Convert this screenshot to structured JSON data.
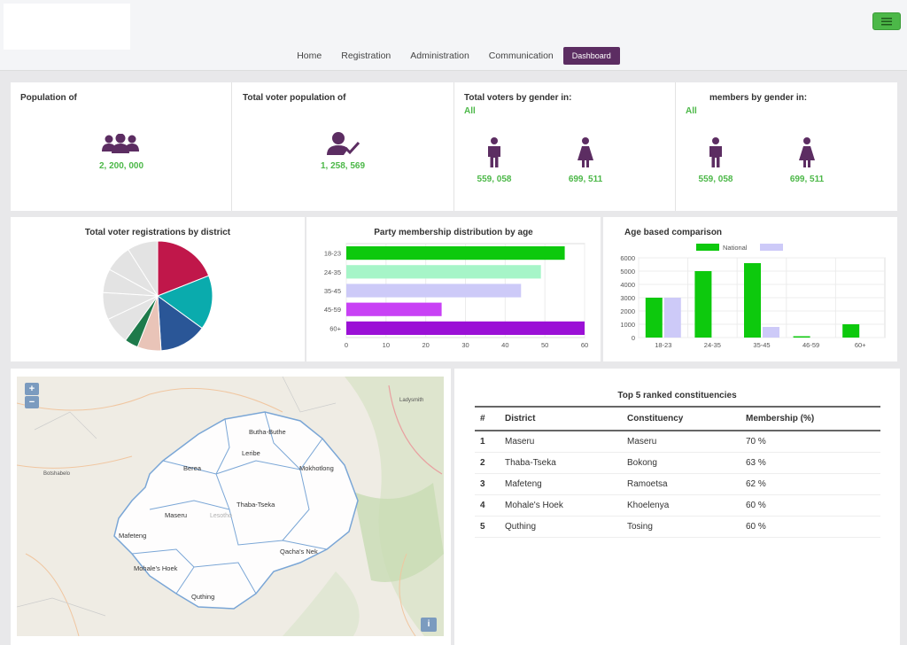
{
  "nav": {
    "items": [
      {
        "label": "Home"
      },
      {
        "label": "Registration"
      },
      {
        "label": "Administration"
      },
      {
        "label": "Communication"
      },
      {
        "label": "Dashboard",
        "active": true
      }
    ]
  },
  "stats": {
    "population": {
      "title": "Population of",
      "value": "2, 200, 000"
    },
    "voter_population": {
      "title": "Total voter population of",
      "value": "1, 258, 569"
    },
    "voters_gender": {
      "title": "Total voters by gender in:",
      "filter": "All",
      "male": "559, 058",
      "female": "699, 511"
    },
    "members_gender": {
      "title": "members by gender in:",
      "filter": "All",
      "male": "559, 058",
      "female": "699, 511"
    }
  },
  "charts": {
    "pie_title": "Total voter registrations by district",
    "bar_title": "Party membership distribution by age",
    "age_title": "Age based comparison"
  },
  "chart_data": [
    {
      "type": "pie",
      "title": "Total voter registrations by district",
      "values": [
        19,
        16,
        14,
        7,
        4,
        8,
        8,
        7,
        8,
        9
      ],
      "colors": [
        "#c0174a",
        "#0aabad",
        "#2a5697",
        "#e9c4b8",
        "#1e7a4b",
        "#e3e3e3",
        "#e3e3e3",
        "#e3e3e3",
        "#e3e3e3",
        "#e3e3e3"
      ]
    },
    {
      "type": "bar",
      "orientation": "horizontal",
      "title": "Party membership distribution by age",
      "categories": [
        "18-23",
        "24-35",
        "35-45",
        "45-59",
        "60+"
      ],
      "values": [
        55,
        49,
        44,
        24,
        60
      ],
      "colors": [
        "#0dc90d",
        "#a6f5c8",
        "#cdcaf8",
        "#c841f5",
        "#9b10d6"
      ],
      "xlim": [
        0,
        60
      ],
      "xticks": [
        0,
        10,
        20,
        30,
        40,
        50,
        60
      ]
    },
    {
      "type": "bar",
      "title": "Age based comparison",
      "categories": [
        "18-23",
        "24-35",
        "35-45",
        "46-59",
        "60+"
      ],
      "series": [
        {
          "name": "National",
          "values": [
            3000,
            5000,
            5600,
            100,
            1000
          ],
          "color": "#0dc90d"
        },
        {
          "name": "",
          "values": [
            3000,
            0,
            800,
            0,
            0
          ],
          "color": "#cdcaf8"
        }
      ],
      "ylim": [
        0,
        6000
      ],
      "yticks": [
        0,
        1000,
        2000,
        3000,
        4000,
        5000,
        6000
      ],
      "legend": "top"
    }
  ],
  "table": {
    "title": "Top 5 ranked constituencies",
    "headers": [
      "#",
      "District",
      "Constituency",
      "Membership (%)"
    ],
    "rows": [
      [
        "1",
        "Maseru",
        "Maseru",
        "70 %"
      ],
      [
        "2",
        "Thaba-Tseka",
        "Bokong",
        "63 %"
      ],
      [
        "3",
        "Mafeteng",
        "Ramoetsa",
        "62 %"
      ],
      [
        "4",
        "Mohale's Hoek",
        "Khoelenya",
        "60 %"
      ],
      [
        "5",
        "Quthing",
        "Tosing",
        "60 %"
      ]
    ]
  },
  "map": {
    "zoom_in": "+",
    "zoom_out": "−",
    "info": "i",
    "labels": [
      {
        "text": "Butha-Buthe"
      },
      {
        "text": "Leribe"
      },
      {
        "text": "Berea"
      },
      {
        "text": "Mokhotlong"
      },
      {
        "text": "Maseru"
      },
      {
        "text": "Thaba-Tseka"
      },
      {
        "text": "Mafeteng"
      },
      {
        "text": "Qacha's Nek"
      },
      {
        "text": "Mohale's Hoek"
      },
      {
        "text": "Quthing"
      },
      {
        "text": "Ladysmith"
      },
      {
        "text": "Botshabelo"
      },
      {
        "text": "Lesotho"
      }
    ]
  },
  "icons": {
    "menu": "hamburger-icon",
    "population": "users-icon",
    "voters": "user-check-icon",
    "male": "male-icon",
    "female": "female-icon"
  }
}
